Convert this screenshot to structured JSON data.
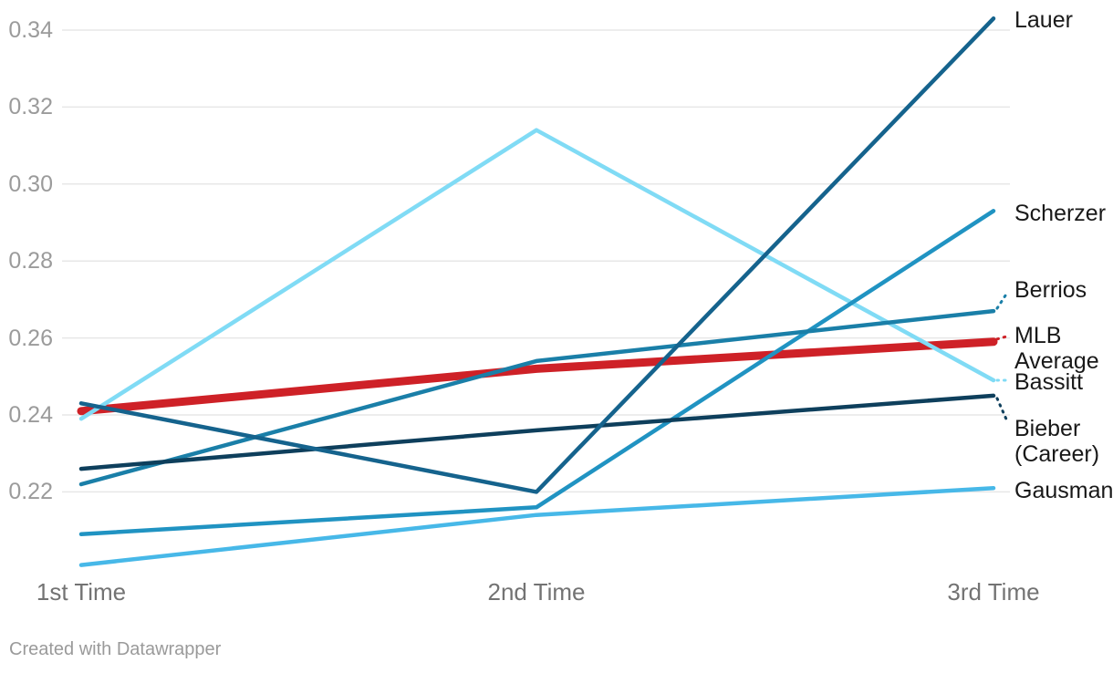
{
  "chart_data": {
    "type": "line",
    "title": "",
    "categories": [
      "1st Time",
      "2nd Time",
      "3rd Time"
    ],
    "series": [
      {
        "name": "MLB Average",
        "label_lines": [
          "MLB",
          "Average"
        ],
        "values": [
          0.241,
          0.252,
          0.259
        ],
        "color": "#ce2127",
        "width": 9,
        "label_dy": -7,
        "connector_dy": -6
      },
      {
        "name": "Bassitt",
        "label_lines": [
          "Bassitt"
        ],
        "values": [
          0.239,
          0.314,
          0.249
        ],
        "color": "#80dbf5",
        "width": 4.5,
        "label_dy": 2,
        "connector_dy": 0
      },
      {
        "name": "Gausman",
        "label_lines": [
          "Gausman"
        ],
        "values": [
          0.201,
          0.214,
          0.221
        ],
        "color": "#47b8e8",
        "width": 4.5,
        "label_dy": 3,
        "connector_dy": null
      },
      {
        "name": "Scherzer",
        "label_lines": [
          "Scherzer"
        ],
        "values": [
          0.209,
          0.216,
          0.293
        ],
        "color": "#2093c2",
        "width": 4.5,
        "label_dy": 3,
        "connector_dy": null
      },
      {
        "name": "Berrios",
        "label_lines": [
          "Berrios"
        ],
        "values": [
          0.222,
          0.254,
          0.267
        ],
        "color": "#1a7fa8",
        "width": 4.5,
        "label_dy": -23,
        "connector_dy": -20
      },
      {
        "name": "Bieber (Career)",
        "label_lines": [
          "Bieber",
          "(Career)"
        ],
        "values": [
          0.226,
          0.236,
          0.245
        ],
        "color": "#0e3f5c",
        "width": 4.5,
        "label_dy": 36,
        "connector_dy": 28
      },
      {
        "name": "Lauer",
        "label_lines": [
          "Lauer"
        ],
        "values": [
          0.243,
          0.22,
          0.343
        ],
        "color": "#15638d",
        "width": 4.5,
        "label_dy": 2,
        "connector_dy": null
      }
    ],
    "y_ticks": [
      0.34,
      0.32,
      0.3,
      0.28,
      0.26,
      0.24,
      0.22
    ],
    "ylim": [
      0.198,
      0.3465
    ],
    "grid": true,
    "legend_position": "direct-labels-right"
  },
  "footer": {
    "text": "Created with Datawrapper"
  }
}
